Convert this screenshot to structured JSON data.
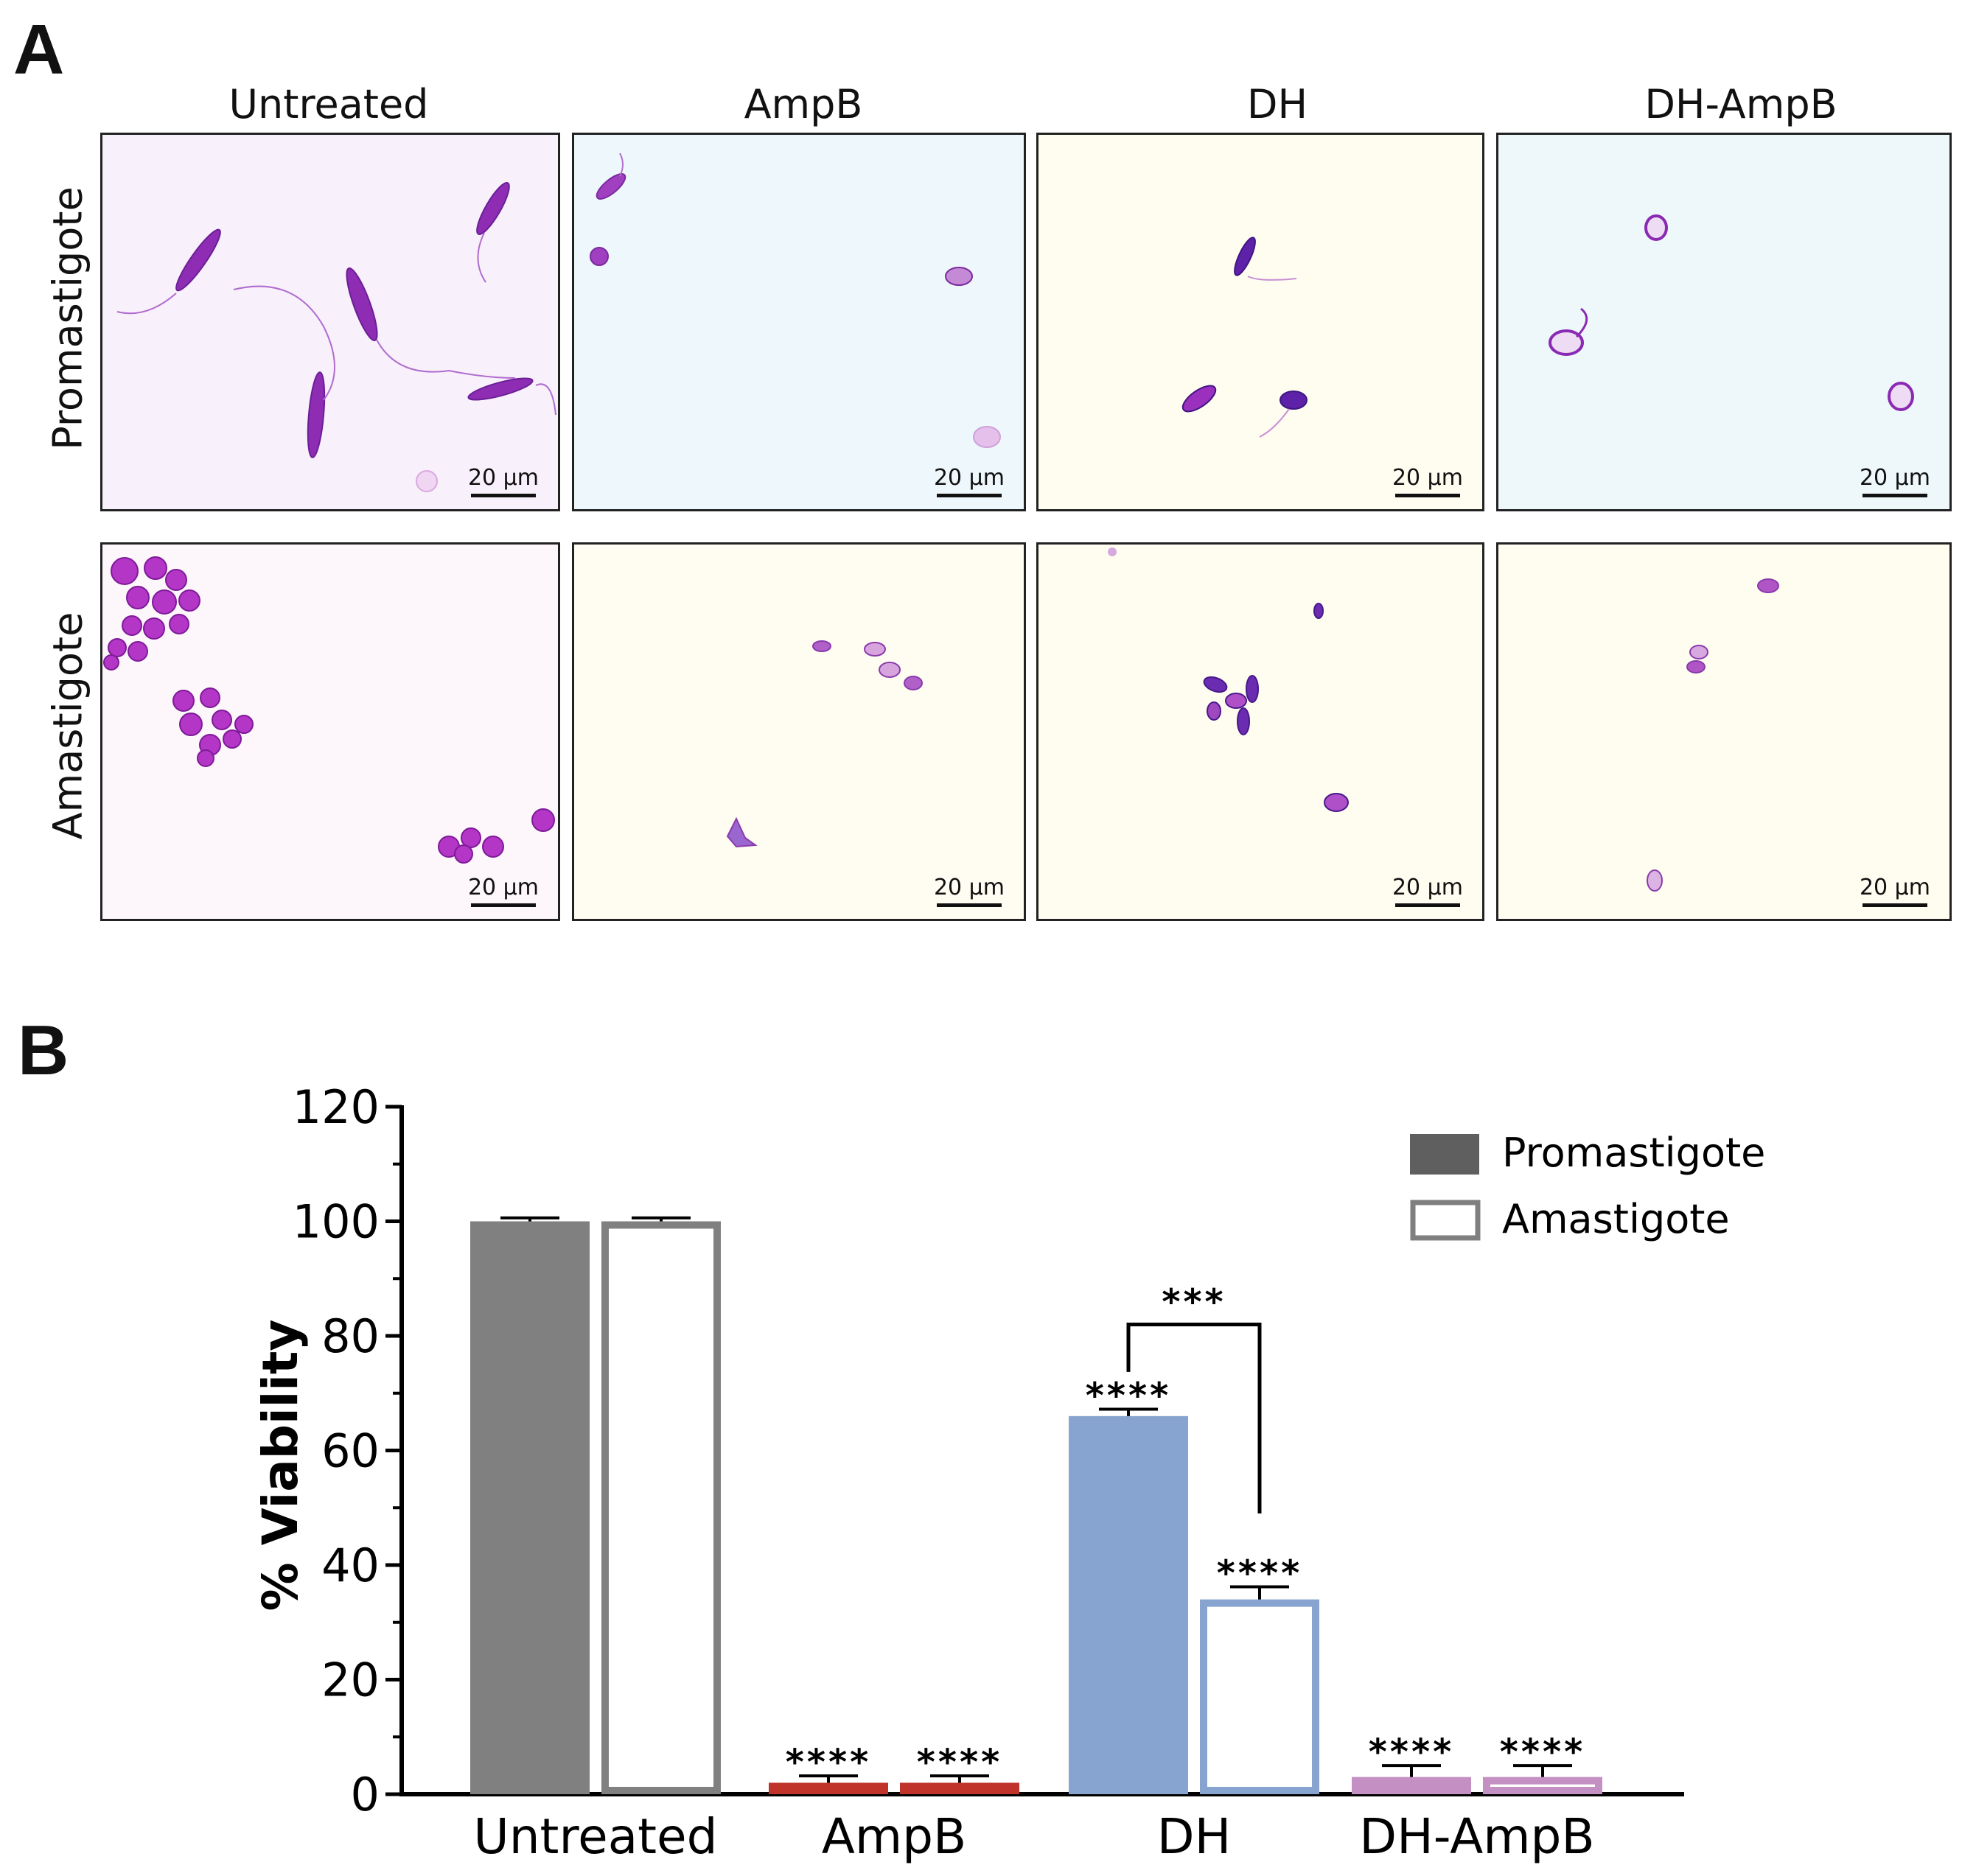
{
  "panel_a": {
    "label": "A",
    "columns": [
      "Untreated",
      "AmpB",
      "DH",
      "DH-AmpB"
    ],
    "rows": [
      "Promastigote",
      "Amastigote"
    ],
    "scale_bar": "20 µm",
    "colors": {
      "stain": "#9b2fb6",
      "stain_dark": "#5a1c9a",
      "bg_pink": "#f7eef9",
      "bg_blue": "#eef7fb",
      "bg_cream": "#fffcf0"
    }
  },
  "panel_b": {
    "label": "B"
  },
  "chart_data": {
    "type": "bar",
    "title": "",
    "xlabel": "",
    "ylabel": "% Viability",
    "ylim": [
      0,
      120
    ],
    "yticks": [
      0,
      20,
      40,
      60,
      80,
      100,
      120
    ],
    "categories": [
      "Untreated",
      "AmpB",
      "DH",
      "DH-AmpB"
    ],
    "series": [
      {
        "name": "Promastigote",
        "style": "filled",
        "values": [
          100,
          2,
          66,
          3
        ],
        "errors": [
          0.6,
          1.2,
          1.2,
          2.0
        ]
      },
      {
        "name": "Amastigote",
        "style": "open",
        "values": [
          100,
          2,
          34,
          3
        ],
        "errors": [
          0.6,
          1.2,
          2.2,
          2.0
        ]
      }
    ],
    "group_colors": [
      "#808080",
      "#c0332b",
      "#87a3cf",
      "#c48fc3"
    ],
    "significance": [
      [
        "",
        "****",
        "****",
        "****"
      ],
      [
        "",
        "****",
        "****",
        "****"
      ]
    ],
    "bracket": {
      "category": "DH",
      "label": "***"
    },
    "legend": {
      "position": "top-right",
      "entries": [
        "Promastigote",
        "Amastigote"
      ],
      "fill_color": "#5f5f5f",
      "open_color": "#7f7f7f"
    }
  }
}
